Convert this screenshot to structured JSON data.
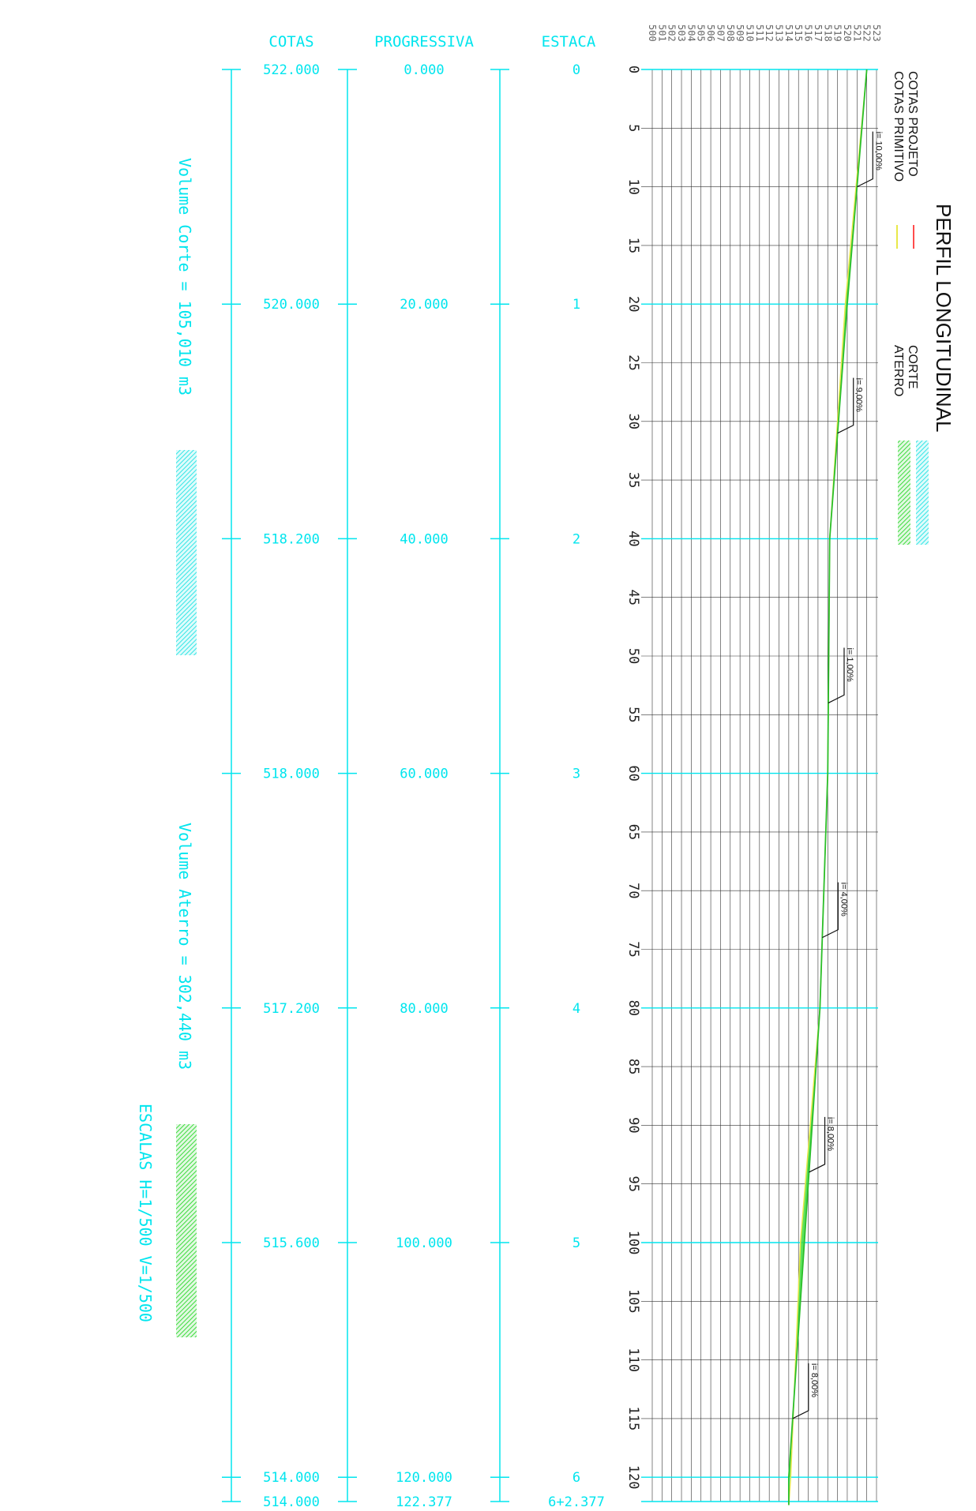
{
  "title": "PERFIL LONGITUDINAL",
  "legend": {
    "projeto": "COTAS PROJETO",
    "primitivo": "COTAS PRIMITIVO",
    "corte": "CORTE",
    "aterro": "ATERRO",
    "projeto_color": "#ff4d4d",
    "primitivo_color": "#e8e84a",
    "corte_color": "#33ffff",
    "aterro_color": "#3ddc3d"
  },
  "headers": {
    "cotas": "COTAS",
    "progressiva": "PROGRESSIVA",
    "estaca": "ESTACA"
  },
  "rows": [
    {
      "cota": "522.000",
      "progressiva": "0.000",
      "estaca": "0"
    },
    {
      "cota": "520.000",
      "progressiva": "20.000",
      "estaca": "1"
    },
    {
      "cota": "518.200",
      "progressiva": "40.000",
      "estaca": "2"
    },
    {
      "cota": "518.000",
      "progressiva": "60.000",
      "estaca": "3"
    },
    {
      "cota": "517.200",
      "progressiva": "80.000",
      "estaca": "4"
    },
    {
      "cota": "515.600",
      "progressiva": "100.000",
      "estaca": "5"
    },
    {
      "cota": "514.000",
      "progressiva": "120.000",
      "estaca": "6"
    },
    {
      "cota": "514.000",
      "progressiva": "122.377",
      "estaca": "6+2.377"
    }
  ],
  "volumes": {
    "corte": "Volume Corte = 105,010 m3",
    "aterro": "Volume Aterro = 302,440 m3"
  },
  "escalas": "ESCALAS H=1/500 V=1/500",
  "axis_distance_labels": [
    "0",
    "5",
    "10",
    "15",
    "20",
    "25",
    "30",
    "35",
    "40",
    "45",
    "50",
    "55",
    "60",
    "65",
    "70",
    "75",
    "80",
    "85",
    "90",
    "95",
    "100",
    "105",
    "110",
    "115",
    "120"
  ],
  "elevation_labels": [
    "500",
    "501",
    "502",
    "503",
    "504",
    "505",
    "506",
    "507",
    "508",
    "509",
    "510",
    "511",
    "512",
    "513",
    "514",
    "515",
    "516",
    "517",
    "518",
    "519",
    "520",
    "521",
    "522",
    "523"
  ],
  "slopes": [
    {
      "label": "i= 10,00%",
      "at": 10
    },
    {
      "label": "i= 9,00%",
      "at": 31
    },
    {
      "label": "i= 1,00%",
      "at": 54
    },
    {
      "label": "i= 4,00%",
      "at": 74
    },
    {
      "label": "i= 8,00%",
      "at": 94
    },
    {
      "label": "i= 8,00%",
      "at": 115
    }
  ],
  "chart_data": {
    "type": "line",
    "x_label": "",
    "y_label": "",
    "x_range": [
      0,
      122.377
    ],
    "y_range": [
      500,
      523
    ],
    "series": [
      {
        "name": "COTAS PROJETO",
        "x": [
          0,
          20,
          40,
          60,
          80,
          100,
          120,
          122.377
        ],
        "y": [
          522.0,
          520.0,
          518.2,
          518.0,
          517.2,
          515.6,
          514.0,
          514.0
        ]
      },
      {
        "name": "COTAS PRIMITIVO",
        "x": [
          0,
          20,
          40,
          60,
          80,
          100,
          120,
          122.377
        ],
        "y": [
          522.0,
          519.8,
          518.2,
          518.0,
          517.2,
          515.2,
          514.2,
          514.0
        ]
      }
    ]
  }
}
